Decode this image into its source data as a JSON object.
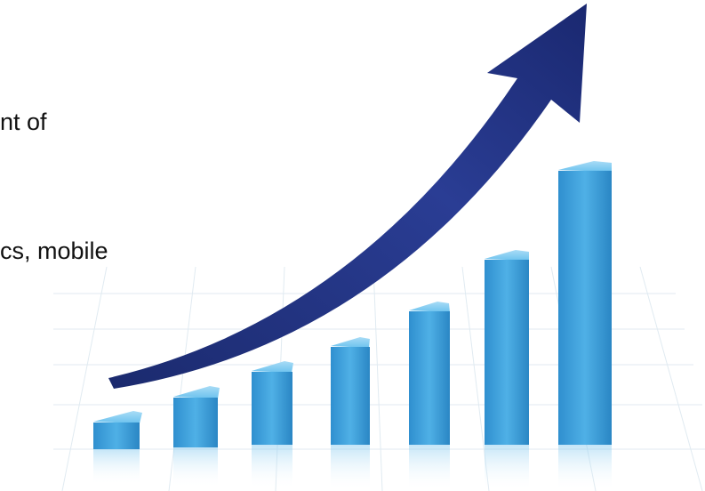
{
  "texts": {
    "line1": "nt of",
    "line2": "cs, mobile"
  }
}
